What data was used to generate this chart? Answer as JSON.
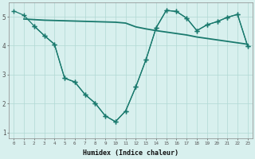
{
  "line_flat_x": [
    1,
    2,
    3,
    4,
    5,
    6,
    7,
    8,
    9,
    10,
    11,
    12,
    13,
    14,
    15,
    16,
    17,
    18,
    19,
    20,
    21,
    22,
    23
  ],
  "line_flat_y": [
    4.92,
    4.9,
    4.88,
    4.87,
    4.86,
    4.85,
    4.84,
    4.83,
    4.82,
    4.81,
    4.78,
    4.65,
    4.58,
    4.52,
    4.47,
    4.42,
    4.37,
    4.3,
    4.25,
    4.2,
    4.15,
    4.1,
    4.05
  ],
  "line_outer_x": [
    0,
    1,
    2,
    3,
    4,
    5,
    6,
    7,
    8,
    9,
    10,
    11,
    12,
    13,
    14,
    15,
    16,
    17,
    18,
    19,
    20,
    21,
    22,
    23
  ],
  "line_outer_y": [
    5.2,
    5.05,
    4.68,
    4.35,
    4.05,
    2.88,
    2.75,
    2.32,
    2.02,
    1.58,
    1.38,
    1.75,
    2.58,
    3.52,
    4.62,
    5.22,
    5.18,
    4.95,
    4.52,
    4.72,
    4.83,
    4.98,
    5.08,
    3.98
  ],
  "line_inner_x": [
    2,
    3,
    4,
    5,
    6,
    7,
    8,
    9,
    10,
    11,
    12,
    13,
    14,
    15,
    16,
    17,
    18,
    19,
    20,
    21,
    22,
    23
  ],
  "line_inner_y": [
    4.68,
    4.35,
    4.05,
    2.88,
    2.75,
    2.32,
    2.02,
    1.58,
    1.38,
    1.75,
    2.58,
    3.52,
    4.62,
    5.22,
    5.18,
    4.95,
    4.52,
    4.72,
    4.83,
    4.98,
    5.08,
    3.98
  ],
  "color": "#1a7a6e",
  "bg_color": "#d8f0ee",
  "grid_color": "#b0d8d4",
  "xlabel": "Humidex (Indice chaleur)",
  "xlim": [
    -0.5,
    23.5
  ],
  "ylim": [
    0.8,
    5.5
  ],
  "yticks": [
    1,
    2,
    3,
    4,
    5
  ],
  "xticks": [
    0,
    1,
    2,
    3,
    4,
    5,
    6,
    7,
    8,
    9,
    10,
    11,
    12,
    13,
    14,
    15,
    16,
    17,
    18,
    19,
    20,
    21,
    22,
    23
  ]
}
